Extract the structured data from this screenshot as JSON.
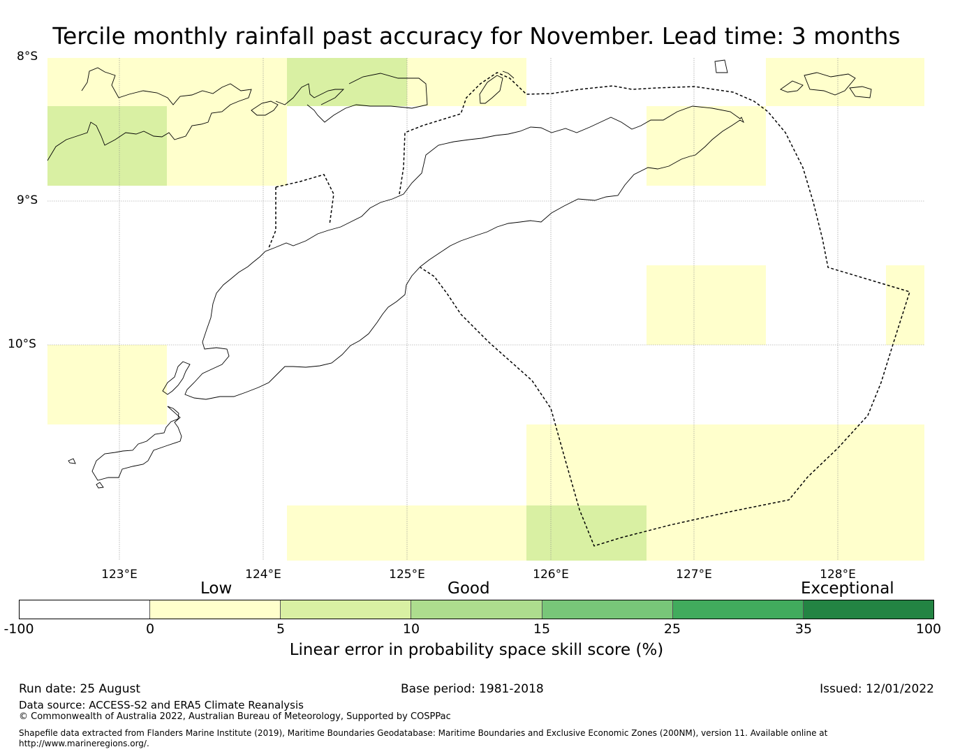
{
  "title": "Tercile monthly rainfall past accuracy for November. Lead time: 3 months",
  "map": {
    "lat_ticks": [
      "8°S",
      "9°S",
      "10°S"
    ],
    "lon_ticks": [
      "123°E",
      "124°E",
      "125°E",
      "126°E",
      "127°E",
      "128°E"
    ],
    "lon_range": [
      122.5,
      128.6
    ],
    "lat_range": [
      -8,
      -11.5
    ],
    "cell_colors": {
      "low": "#ffffcc",
      "good": "#d9f0a3"
    }
  },
  "colorbar": {
    "category_labels": [
      "Low",
      "Good",
      "Exceptional"
    ],
    "ticks": [
      "-100",
      "0",
      "5",
      "10",
      "15",
      "25",
      "35",
      "100"
    ],
    "colors": [
      "#ffffff",
      "#ffffcc",
      "#d9f0a3",
      "#addd8e",
      "#78c679",
      "#41ab5d",
      "#238443"
    ],
    "label": "Linear error in probability space skill score (%)"
  },
  "footer": {
    "run_date": "Run date: 25 August",
    "base_period": "Base period: 1981-2018",
    "issued": "Issued: 12/01/2022",
    "data_source": "Data source: ACCESS-S2 and ERA5 Climate Reanalysis",
    "copyright": "© Commonwealth of Australia 2022, Australian Bureau of Meteorology, Supported by COSPPac",
    "shapefile_line1": "Shapefile data extracted from Flanders Marine Institute (2019), Maritime Boundaries Geodatabase: Maritime Boundaries and Exclusive Economic Zones (200NM), version 11. Available online at",
    "shapefile_line2": "http://www.marineregions.org/."
  }
}
